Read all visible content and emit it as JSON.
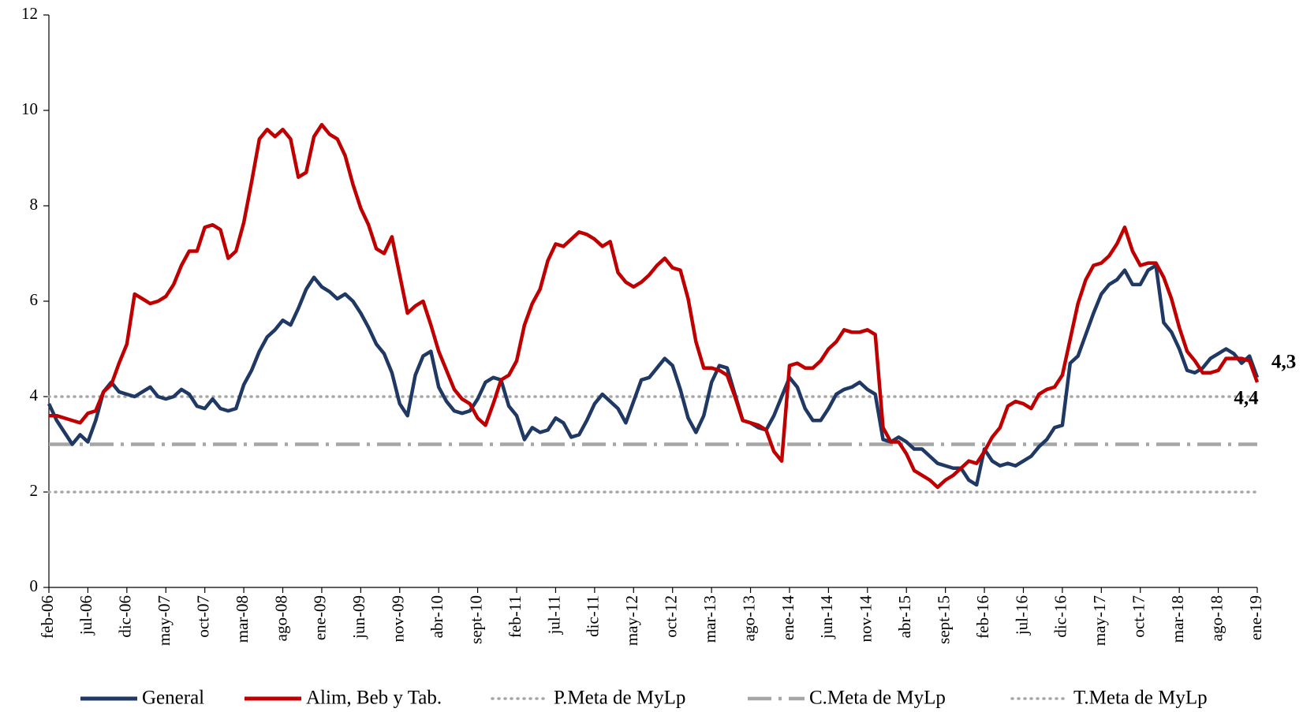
{
  "chart_data": {
    "type": "line",
    "categories": [
      "feb-06",
      null,
      null,
      null,
      null,
      "jul-06",
      null,
      null,
      null,
      null,
      "dic-06",
      null,
      null,
      null,
      null,
      "may-07",
      null,
      null,
      null,
      null,
      "oct-07",
      null,
      null,
      null,
      null,
      "mar-08",
      null,
      null,
      null,
      null,
      "ago-08",
      null,
      null,
      null,
      null,
      "ene-09",
      null,
      null,
      null,
      null,
      "jun-09",
      null,
      null,
      null,
      null,
      "nov-09",
      null,
      null,
      null,
      null,
      "abr-10",
      null,
      null,
      null,
      null,
      "sept-10",
      null,
      null,
      null,
      null,
      "feb-11",
      null,
      null,
      null,
      null,
      "jul-11",
      null,
      null,
      null,
      null,
      "dic-11",
      null,
      null,
      null,
      null,
      "may-12",
      null,
      null,
      null,
      null,
      "oct-12",
      null,
      null,
      null,
      null,
      "mar-13",
      null,
      null,
      null,
      null,
      "ago-13",
      null,
      null,
      null,
      null,
      "ene-14",
      null,
      null,
      null,
      null,
      "jun-14",
      null,
      null,
      null,
      null,
      "nov-14",
      null,
      null,
      null,
      null,
      "abr-15",
      null,
      null,
      null,
      null,
      "sept-15",
      null,
      null,
      null,
      null,
      "feb-16",
      null,
      null,
      null,
      null,
      "jul-16",
      null,
      null,
      null,
      null,
      "dic-16",
      null,
      null,
      null,
      null,
      "may-17",
      null,
      null,
      null,
      null,
      "oct-17",
      null,
      null,
      null,
      null,
      "mar-18",
      null,
      null,
      null,
      null,
      "ago-18",
      null,
      null,
      null,
      null,
      "ene-19"
    ],
    "series": [
      {
        "name": "General",
        "color": "#1f3864",
        "end_label": "4,4",
        "values": [
          3.85,
          3.5,
          3.25,
          3.0,
          3.2,
          3.05,
          3.5,
          4.1,
          4.3,
          4.1,
          4.05,
          4.0,
          4.1,
          4.2,
          4.0,
          3.95,
          4.0,
          4.15,
          4.05,
          3.8,
          3.75,
          3.95,
          3.75,
          3.7,
          3.75,
          4.25,
          4.55,
          4.95,
          5.25,
          5.4,
          5.6,
          5.5,
          5.85,
          6.25,
          6.5,
          6.3,
          6.2,
          6.05,
          6.15,
          6.0,
          5.75,
          5.45,
          5.1,
          4.9,
          4.5,
          3.85,
          3.6,
          4.45,
          4.85,
          4.95,
          4.2,
          3.9,
          3.7,
          3.65,
          3.7,
          3.95,
          4.3,
          4.4,
          4.35,
          3.8,
          3.6,
          3.1,
          3.35,
          3.25,
          3.3,
          3.55,
          3.45,
          3.15,
          3.2,
          3.5,
          3.85,
          4.05,
          3.9,
          3.75,
          3.45,
          3.9,
          4.35,
          4.4,
          4.6,
          4.8,
          4.65,
          4.15,
          3.55,
          3.25,
          3.6,
          4.3,
          4.65,
          4.6,
          4.05,
          3.5,
          3.45,
          3.35,
          3.3,
          3.6,
          4.0,
          4.4,
          4.2,
          3.75,
          3.5,
          3.5,
          3.75,
          4.05,
          4.15,
          4.2,
          4.3,
          4.15,
          4.05,
          3.1,
          3.05,
          3.15,
          3.05,
          2.9,
          2.9,
          2.75,
          2.6,
          2.55,
          2.5,
          2.5,
          2.25,
          2.15,
          2.9,
          2.65,
          2.55,
          2.6,
          2.55,
          2.65,
          2.75,
          2.95,
          3.1,
          3.35,
          3.4,
          4.7,
          4.85,
          5.3,
          5.75,
          6.15,
          6.35,
          6.45,
          6.65,
          6.35,
          6.35,
          6.65,
          6.75,
          5.55,
          5.35,
          5.0,
          4.55,
          4.5,
          4.6,
          4.8,
          4.9,
          5.0,
          4.9,
          4.7,
          4.85,
          4.4
        ]
      },
      {
        "name": "Alim, Beb y Tab.",
        "color": "#c00000",
        "end_label": "4,3",
        "values": [
          3.6,
          3.6,
          3.55,
          3.5,
          3.45,
          3.65,
          3.7,
          4.1,
          4.25,
          4.7,
          5.1,
          6.15,
          6.05,
          5.95,
          6.0,
          6.1,
          6.35,
          6.75,
          7.05,
          7.05,
          7.55,
          7.6,
          7.5,
          6.9,
          7.05,
          7.65,
          8.5,
          9.4,
          9.6,
          9.45,
          9.6,
          9.4,
          8.6,
          8.7,
          9.45,
          9.7,
          9.5,
          9.4,
          9.05,
          8.45,
          7.95,
          7.6,
          7.1,
          7.0,
          7.35,
          6.55,
          5.75,
          5.9,
          6.0,
          5.5,
          4.95,
          4.55,
          4.15,
          3.95,
          3.85,
          3.55,
          3.4,
          3.85,
          4.35,
          4.45,
          4.75,
          5.5,
          5.95,
          6.25,
          6.85,
          7.2,
          7.15,
          7.3,
          7.45,
          7.4,
          7.3,
          7.15,
          7.25,
          6.6,
          6.4,
          6.3,
          6.4,
          6.55,
          6.75,
          6.9,
          6.7,
          6.65,
          6.05,
          5.15,
          4.6,
          4.6,
          4.55,
          4.45,
          4.0,
          3.5,
          3.45,
          3.4,
          3.3,
          2.85,
          2.65,
          4.65,
          4.7,
          4.6,
          4.6,
          4.75,
          5.0,
          5.15,
          5.4,
          5.35,
          5.35,
          5.4,
          5.3,
          3.35,
          3.05,
          3.05,
          2.8,
          2.45,
          2.35,
          2.25,
          2.1,
          2.25,
          2.35,
          2.5,
          2.65,
          2.6,
          2.85,
          3.15,
          3.35,
          3.8,
          3.9,
          3.85,
          3.75,
          4.05,
          4.15,
          4.2,
          4.45,
          5.2,
          5.95,
          6.45,
          6.75,
          6.8,
          6.95,
          7.2,
          7.55,
          7.05,
          6.75,
          6.8,
          6.8,
          6.5,
          6.05,
          5.45,
          4.95,
          4.75,
          4.5,
          4.5,
          4.55,
          4.8,
          4.8,
          4.8,
          4.75,
          4.3
        ]
      }
    ],
    "reference_lines": [
      {
        "name": "P.Meta de MyLp",
        "value": 4,
        "color": "#a6a6a6",
        "style": "dotted"
      },
      {
        "name": "C.Meta de MyLp",
        "value": 3,
        "color": "#a6a6a6",
        "style": "dashdot"
      },
      {
        "name": "T.Meta de MyLp",
        "value": 2,
        "color": "#a6a6a6",
        "style": "dotted"
      }
    ],
    "ylim": [
      0,
      12
    ],
    "yticks": [
      0,
      2,
      4,
      6,
      8,
      10,
      12
    ],
    "legend": "bottom"
  }
}
